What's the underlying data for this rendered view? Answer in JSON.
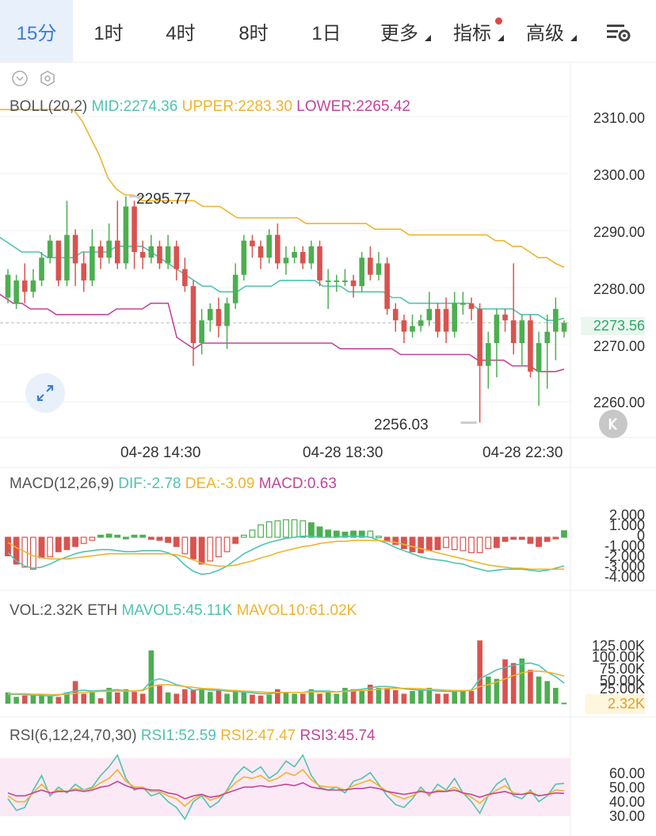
{
  "tabs": [
    {
      "label": "15分",
      "active": true
    },
    {
      "label": "1时"
    },
    {
      "label": "4时"
    },
    {
      "label": "8时"
    },
    {
      "label": "1日"
    },
    {
      "label": "更多",
      "dropdown": true
    },
    {
      "label": "指标",
      "dropdown": true,
      "badge": true
    },
    {
      "label": "高级",
      "dropdown": true
    }
  ],
  "icons": {
    "settings": "chart-settings-icon",
    "expand": "expand-icon",
    "collapse": "k-collapse-icon",
    "chevron": "chevron-down-icon",
    "gear": "hexagon-settings-icon"
  },
  "colors": {
    "up": "#4caf50",
    "down": "#d9534f",
    "mid": "#4fc3b0",
    "upper": "#f0b429",
    "lower": "#c2449b",
    "active": "#3a7bd5"
  },
  "boll": {
    "name": "BOLL(20,2)",
    "mid": "MID:2274.36",
    "upper": "UPPER:2283.30",
    "lower": "LOWER:2265.42"
  },
  "price_axis": [
    "2310.00",
    "2300.00",
    "2290.00",
    "2280.00",
    "2270.00",
    "2260.00"
  ],
  "current_price": "2273.56",
  "high_label": "2295.77",
  "low_label": "2256.03",
  "time_labels": [
    "04-28 14:30",
    "04-28 18:30",
    "04-28 22:30"
  ],
  "macd": {
    "name": "MACD(12,26,9)",
    "dif": "DIF:-2.78",
    "dea": "DEA:-3.09",
    "macd": "MACD:0.63",
    "axis": [
      "2.000",
      "1.000",
      "0",
      "-1.000",
      "-2.000",
      "-3.000",
      "-4.000"
    ]
  },
  "vol": {
    "name": "VOL:2.32K ETH",
    "mavol5": "MAVOL5:45.11K",
    "mavol10": "MAVOL10:61.02K",
    "axis": [
      "125.00K",
      "100.00K",
      "75.00K",
      "50.00K",
      "25.00K"
    ],
    "current": "2.32K"
  },
  "rsi": {
    "name": "RSI(6,12,24,70,30)",
    "rsi1": "RSI1:52.59",
    "rsi2": "RSI2:47.47",
    "rsi3": "RSI3:45.74",
    "axis": [
      "60.00",
      "50.00",
      "40.00",
      "30.00"
    ]
  },
  "chart_data": {
    "type": "candlestick",
    "price_range": [
      2254,
      2318
    ],
    "candles": [
      [
        2278,
        2282,
        2283,
        2277
      ],
      [
        2277,
        2281,
        2282,
        2276
      ],
      [
        2281,
        2279,
        2284,
        2277
      ],
      [
        2279,
        2281,
        2283,
        2278
      ],
      [
        2281,
        2285,
        2286,
        2280
      ],
      [
        2285,
        2288,
        2289,
        2284
      ],
      [
        2288,
        2281,
        2288,
        2280
      ],
      [
        2281,
        2289,
        2295,
        2280
      ],
      [
        2289,
        2284,
        2290,
        2280
      ],
      [
        2284,
        2281,
        2286,
        2279
      ],
      [
        2281,
        2287,
        2290,
        2280
      ],
      [
        2287,
        2285,
        2288,
        2283
      ],
      [
        2285,
        2288,
        2291,
        2284
      ],
      [
        2288,
        2284,
        2295,
        2283
      ],
      [
        2284,
        2294,
        2295.77,
        2283
      ],
      [
        2294,
        2286,
        2295,
        2283
      ],
      [
        2286,
        2285,
        2288,
        2283
      ],
      [
        2285,
        2287,
        2289,
        2284
      ],
      [
        2287,
        2284,
        2288,
        2283
      ],
      [
        2284,
        2287,
        2289,
        2283
      ],
      [
        2287,
        2283,
        2288,
        2281
      ],
      [
        2283,
        2280,
        2285,
        2279
      ],
      [
        2280,
        2270,
        2281,
        2266
      ],
      [
        2270,
        2274,
        2276,
        2268
      ],
      [
        2274,
        2276,
        2277,
        2272
      ],
      [
        2276,
        2273,
        2278,
        2271
      ],
      [
        2273,
        2277,
        2278,
        2269
      ],
      [
        2277,
        2282,
        2284,
        2276
      ],
      [
        2282,
        2288,
        2289,
        2281
      ],
      [
        2288,
        2287,
        2289,
        2285
      ],
      [
        2287,
        2285,
        2288,
        2283
      ],
      [
        2285,
        2289,
        2290,
        2284
      ],
      [
        2289,
        2284,
        2291,
        2283
      ],
      [
        2284,
        2285,
        2287,
        2282
      ],
      [
        2285,
        2286,
        2287,
        2284
      ],
      [
        2286,
        2284,
        2287,
        2283
      ],
      [
        2284,
        2287,
        2288,
        2283
      ],
      [
        2287,
        2281,
        2288,
        2280
      ],
      [
        2281,
        2281,
        2283,
        2276
      ],
      [
        2281,
        2281,
        2282,
        2279
      ],
      [
        2281,
        2281,
        2283,
        2280
      ],
      [
        2281,
        2280,
        2282,
        2278
      ],
      [
        2280,
        2285,
        2286,
        2279
      ],
      [
        2285,
        2282,
        2287,
        2281
      ],
      [
        2282,
        2284,
        2286,
        2281
      ],
      [
        2284,
        2276,
        2285,
        2275
      ],
      [
        2276,
        2274,
        2277,
        2272
      ],
      [
        2274,
        2272,
        2275,
        2270
      ],
      [
        2272,
        2273,
        2275,
        2271
      ],
      [
        2273,
        2274,
        2275,
        2272
      ],
      [
        2274,
        2276,
        2279,
        2273
      ],
      [
        2276,
        2272,
        2277,
        2271
      ],
      [
        2276,
        2272,
        2278,
        2270
      ],
      [
        2272,
        2277,
        2279,
        2271
      ],
      [
        2277,
        2277,
        2279,
        2275
      ],
      [
        2277,
        2276,
        2278,
        2274
      ],
      [
        2276,
        2266,
        2277,
        2256.03
      ],
      [
        2266,
        2270,
        2272,
        2262
      ],
      [
        2270,
        2275,
        2276,
        2264
      ],
      [
        2275,
        2274,
        2276,
        2272
      ],
      [
        2274,
        2270,
        2284,
        2268
      ],
      [
        2270,
        2274,
        2275,
        2266
      ],
      [
        2274,
        2265,
        2275,
        2264
      ],
      [
        2265,
        2270,
        2272,
        2259
      ],
      [
        2270,
        2272,
        2275,
        2262
      ],
      [
        2272,
        2276,
        2278,
        2267
      ],
      [
        2272,
        2273.56,
        2274,
        2271
      ]
    ],
    "boll_mid": [
      2289,
      2288,
      2287,
      2286,
      2286,
      2286,
      2285,
      2285,
      2285,
      2285,
      2286,
      2286,
      2286,
      2286,
      2287,
      2287,
      2287,
      2287,
      2286,
      2285,
      2284,
      2283,
      2282,
      2281,
      2280,
      2280,
      2279,
      2279,
      2279,
      2280,
      2280,
      2280,
      2280,
      2281,
      2281,
      2281,
      2281,
      2281,
      2280,
      2280,
      2280,
      2279,
      2279,
      2279,
      2279,
      2279,
      2278,
      2278,
      2277,
      2277,
      2277,
      2277,
      2277,
      2277,
      2277,
      2277,
      2276,
      2276,
      2276,
      2276,
      2276,
      2275,
      2275,
      2275,
      2274,
      2274,
      2274.36
    ],
    "boll_upper": [
      2311,
      2311,
      2311,
      2311,
      2311,
      2311,
      2311,
      2311,
      2311,
      2311,
      2309,
      2306,
      2303,
      2299,
      2297,
      2296,
      2296,
      2295,
      2295,
      2295,
      2295,
      2295,
      2295,
      2295,
      2294,
      2294,
      2294,
      2293,
      2292,
      2292,
      2292,
      2292,
      2292,
      2292,
      2292,
      2292,
      2291,
      2291,
      2291,
      2291,
      2291,
      2291,
      2291,
      2291,
      2290,
      2290,
      2290,
      2290,
      2289,
      2289,
      2289,
      2289,
      2289,
      2289,
      2289,
      2289,
      2289,
      2289,
      2288,
      2288,
      2287,
      2287,
      2286,
      2285,
      2285,
      2284,
      2283.3
    ],
    "boll_lower": [
      2279,
      2278,
      2277,
      2277,
      2276,
      2276,
      2276,
      2275,
      2275,
      2275,
      2275,
      2275,
      2275,
      2275,
      2276,
      2276,
      2276,
      2276,
      2277,
      2277,
      2277,
      2271,
      2270,
      2269,
      2270,
      2270,
      2270,
      2270,
      2270,
      2270,
      2270,
      2270,
      2270,
      2270,
      2270,
      2270,
      2270,
      2270,
      2270,
      2270,
      2269,
      2269,
      2269,
      2269,
      2269,
      2269,
      2269,
      2268,
      2268,
      2268,
      2268,
      2268,
      2268,
      2268,
      2268,
      2268,
      2267,
      2267,
      2267,
      2267,
      2266,
      2266,
      2266,
      2265,
      2265,
      2265,
      2265.42
    ]
  }
}
